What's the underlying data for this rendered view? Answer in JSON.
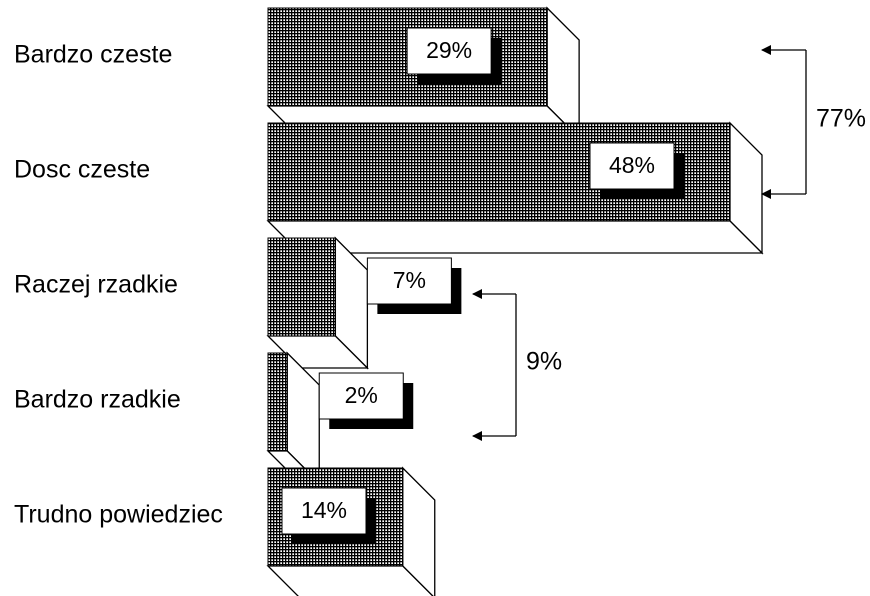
{
  "chart_data": {
    "type": "bar",
    "orientation": "horizontal",
    "style": "3d",
    "categories": [
      "Bardzo czeste",
      "Dosc czeste",
      "Raczej rzadkie",
      "Bardzo rzadkie",
      "Trudno powiedziec"
    ],
    "values": [
      29,
      48,
      7,
      2,
      14
    ],
    "value_labels": [
      "29%",
      "48%",
      "7%",
      "2%",
      "14%"
    ],
    "unit": "%",
    "xlim": [
      0,
      48
    ],
    "grid": false,
    "legend": "none",
    "groups": [
      {
        "label": "77%",
        "from": "Bardzo czeste",
        "to": "Dosc czeste",
        "value": 77
      },
      {
        "label": "9%",
        "from": "Raczej rzadkie",
        "to": "Bardzo rzadkie",
        "value": 9
      }
    ],
    "bar_fill": "crosshatch",
    "colors": {
      "bar": "#000000",
      "background": "#ffffff",
      "shadow": "#000000"
    }
  }
}
